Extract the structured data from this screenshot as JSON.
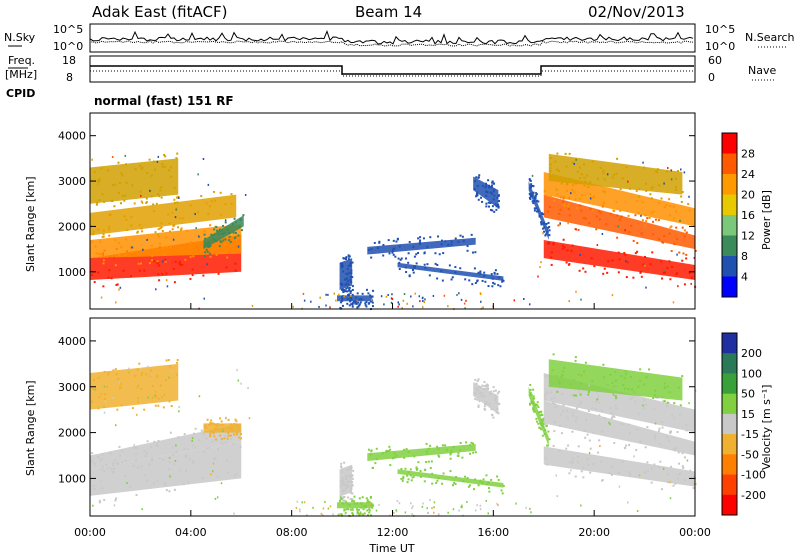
{
  "header": {
    "station": "Adak East (fitACF)",
    "beam": "Beam 14",
    "date": "02/Nov/2013"
  },
  "top_panels": {
    "nsky_label": "N.Sky",
    "nsearch_label": "N.Search",
    "nsky_ticks": [
      "10^5",
      "10^0"
    ],
    "nsearch_ticks": [
      "10^5",
      "10^0"
    ],
    "freq_label_1": "Freq.",
    "freq_label_2": "[MHz]",
    "freq_ticks": [
      "18",
      "8"
    ],
    "nave_label": "Nave",
    "nave_ticks": [
      "60",
      "0"
    ],
    "cpid_label": "CPID",
    "cpid_value": "normal (fast) 151 RF"
  },
  "chart_data": [
    {
      "type": "heatmap",
      "name": "power",
      "xlabel": "",
      "ylabel": "Slant Range [km]",
      "colorbar_label": "Power [dB]",
      "colorbar_ticks": [
        "28",
        "24",
        "20",
        "16",
        "12",
        "8",
        "4"
      ],
      "colorbar_colors": [
        "#ff0000",
        "#ff5a00",
        "#ff9900",
        "#e8c800",
        "#7bc87b",
        "#3a8a5a",
        "#2050b0",
        "#0000ff"
      ],
      "yticks": [
        "4000",
        "3000",
        "2000",
        "1000"
      ],
      "ylim": [
        180,
        4500
      ],
      "xlim_hours": [
        0,
        24
      ],
      "bands": [
        {
          "hour": [
            0.0,
            6.0
          ],
          "range_start": [
            820,
            1300
          ],
          "range_end": [
            1000,
            1820
          ],
          "color": "#ff1a00"
        },
        {
          "hour": [
            0.0,
            6.0
          ],
          "range_start": [
            1300,
            1700
          ],
          "range_end": [
            1400,
            2050
          ],
          "color": "#ff9000"
        },
        {
          "hour": [
            0.0,
            5.8
          ],
          "range_start": [
            1800,
            2300
          ],
          "range_end": [
            2200,
            2700
          ],
          "color": "#e0a000"
        },
        {
          "hour": [
            4.5,
            6.1
          ],
          "range_start": [
            1500,
            1700
          ],
          "range_end": [
            2000,
            2250
          ],
          "color": "#3a8a5a"
        },
        {
          "hour": [
            0.0,
            3.5
          ],
          "range_start": [
            2500,
            3300
          ],
          "range_end": [
            2700,
            3500
          ],
          "color": "#d0a000"
        },
        {
          "hour": [
            9.9,
            10.4
          ],
          "range_start": [
            600,
            1200
          ],
          "range_end": [
            700,
            1300
          ],
          "color": "#2050b0"
        },
        {
          "hour": [
            11.0,
            15.3
          ],
          "range_start": [
            1380,
            1550
          ],
          "range_end": [
            1600,
            1750
          ],
          "color": "#2050b0"
        },
        {
          "hour": [
            12.2,
            16.4
          ],
          "range_start": [
            1100,
            1200
          ],
          "range_end": [
            800,
            900
          ],
          "color": "#2050b0"
        },
        {
          "hour": [
            15.2,
            16.2
          ],
          "range_start": [
            2800,
            3100
          ],
          "range_end": [
            2400,
            2800
          ],
          "color": "#2050b0"
        },
        {
          "hour": [
            17.4,
            18.2
          ],
          "range_start": [
            2800,
            3000
          ],
          "range_end": [
            1700,
            1900
          ],
          "color": "#2050b0"
        },
        {
          "hour": [
            9.8,
            11.2
          ],
          "range_start": [
            350,
            480
          ],
          "range_end": [
            350,
            480
          ],
          "color": "#2050b0"
        },
        {
          "hour": [
            18.0,
            24.0
          ],
          "range_start": [
            1300,
            1700
          ],
          "range_end": [
            820,
            1150
          ],
          "color": "#ff1a00"
        },
        {
          "hour": [
            18.0,
            24.0
          ],
          "range_start": [
            2200,
            2700
          ],
          "range_end": [
            1500,
            1800
          ],
          "color": "#ff5a00"
        },
        {
          "hour": [
            18.0,
            24.0
          ],
          "range_start": [
            2700,
            3200
          ],
          "range_end": [
            2000,
            2400
          ],
          "color": "#ff9000"
        },
        {
          "hour": [
            18.2,
            23.5
          ],
          "range_start": [
            3000,
            3600
          ],
          "range_end": [
            2700,
            3200
          ],
          "color": "#d0a000"
        }
      ]
    },
    {
      "type": "heatmap",
      "name": "velocity",
      "xlabel": "Time UT",
      "ylabel": "Slant Range [km]",
      "colorbar_label": "Velocity [m s⁻¹]",
      "colorbar_ticks": [
        "200",
        "100",
        "50",
        "15",
        "-15",
        "-50",
        "-100",
        "-200"
      ],
      "colorbar_colors": [
        "#2030a0",
        "#2a7a5a",
        "#3aa03a",
        "#80d040",
        "#c8c8c8",
        "#f0b030",
        "#ff8000",
        "#ff4000",
        "#ff0000"
      ],
      "yticks": [
        "4000",
        "3000",
        "2000",
        "1000"
      ],
      "xticks": [
        "00:00",
        "04:00",
        "08:00",
        "12:00",
        "16:00",
        "20:00",
        "00:00"
      ],
      "ylim": [
        180,
        4500
      ],
      "xlim_hours": [
        0,
        24
      ],
      "bands": [
        {
          "hour": [
            0.0,
            6.0
          ],
          "range_start": [
            620,
            1200
          ],
          "range_end": [
            1000,
            1800
          ],
          "color": "#c8c8c8"
        },
        {
          "hour": [
            0.0,
            6.0
          ],
          "range_start": [
            1200,
            1500
          ],
          "range_end": [
            1800,
            2200
          ],
          "color": "#c8c8c8"
        },
        {
          "hour": [
            4.5,
            6.0
          ],
          "range_start": [
            2000,
            2200
          ],
          "range_end": [
            2000,
            2200
          ],
          "color": "#f0b030"
        },
        {
          "hour": [
            0.0,
            3.5
          ],
          "range_start": [
            2500,
            3300
          ],
          "range_end": [
            2700,
            3500
          ],
          "color": "#f0b030"
        },
        {
          "hour": [
            9.9,
            10.4
          ],
          "range_start": [
            600,
            1200
          ],
          "range_end": [
            700,
            1300
          ],
          "color": "#c8c8c8"
        },
        {
          "hour": [
            11.0,
            15.3
          ],
          "range_start": [
            1380,
            1550
          ],
          "range_end": [
            1600,
            1750
          ],
          "color": "#80d040"
        },
        {
          "hour": [
            12.2,
            16.4
          ],
          "range_start": [
            1100,
            1200
          ],
          "range_end": [
            800,
            900
          ],
          "color": "#80d040"
        },
        {
          "hour": [
            15.2,
            16.2
          ],
          "range_start": [
            2800,
            3100
          ],
          "range_end": [
            2400,
            2800
          ],
          "color": "#c8c8c8"
        },
        {
          "hour": [
            17.4,
            18.2
          ],
          "range_start": [
            2800,
            3000
          ],
          "range_end": [
            1700,
            1900
          ],
          "color": "#80d040"
        },
        {
          "hour": [
            9.8,
            11.2
          ],
          "range_start": [
            350,
            480
          ],
          "range_end": [
            350,
            480
          ],
          "color": "#80d040"
        },
        {
          "hour": [
            18.0,
            24.0
          ],
          "range_start": [
            1300,
            1700
          ],
          "range_end": [
            820,
            1150
          ],
          "color": "#c8c8c8"
        },
        {
          "hour": [
            18.0,
            24.0
          ],
          "range_start": [
            2200,
            2700
          ],
          "range_end": [
            1500,
            1800
          ],
          "color": "#c8c8c8"
        },
        {
          "hour": [
            18.0,
            24.0
          ],
          "range_start": [
            2700,
            3300
          ],
          "range_end": [
            2000,
            2500
          ],
          "color": "#c8c8c8"
        },
        {
          "hour": [
            18.2,
            23.5
          ],
          "range_start": [
            3000,
            3600
          ],
          "range_end": [
            2700,
            3200
          ],
          "color": "#80d040"
        }
      ]
    }
  ]
}
